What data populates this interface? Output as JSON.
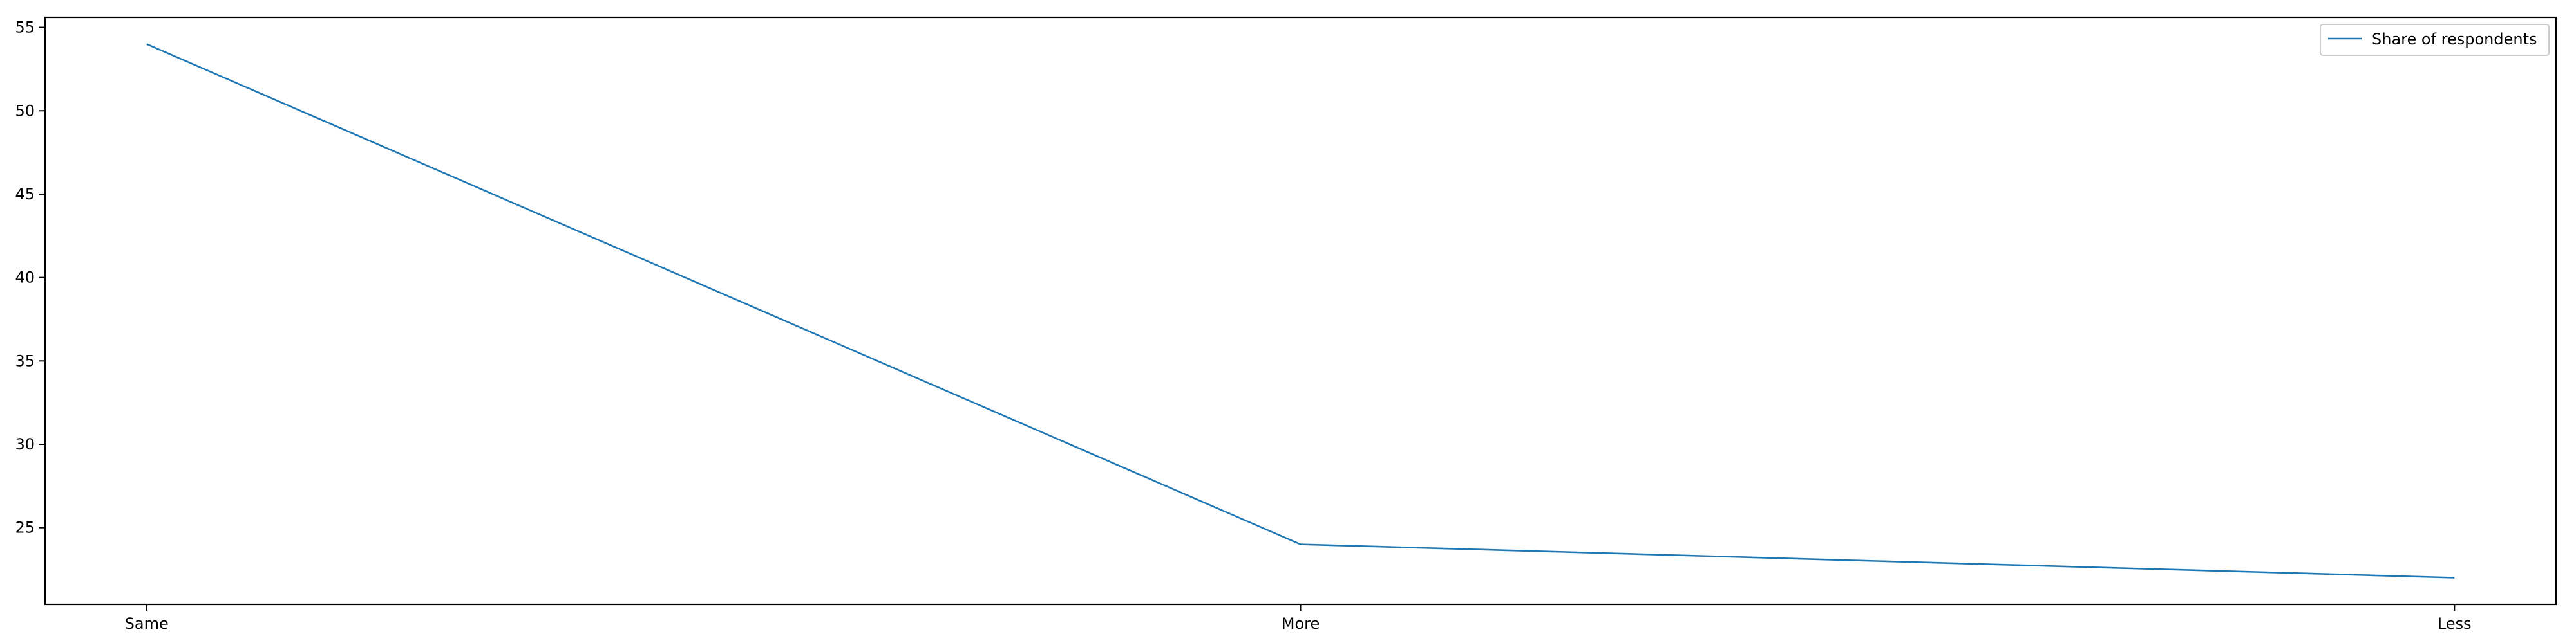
{
  "chart_data": {
    "type": "line",
    "categories": [
      "Same",
      "More",
      "Less"
    ],
    "series": [
      {
        "name": "Share of respondents",
        "values": [
          54,
          24,
          22
        ],
        "color": "#1f77b4"
      }
    ],
    "yticks": [
      25,
      30,
      35,
      40,
      45,
      50,
      55
    ],
    "ylim": [
      20.4,
      55.6
    ],
    "grid": false,
    "legend_position": "top-right"
  }
}
